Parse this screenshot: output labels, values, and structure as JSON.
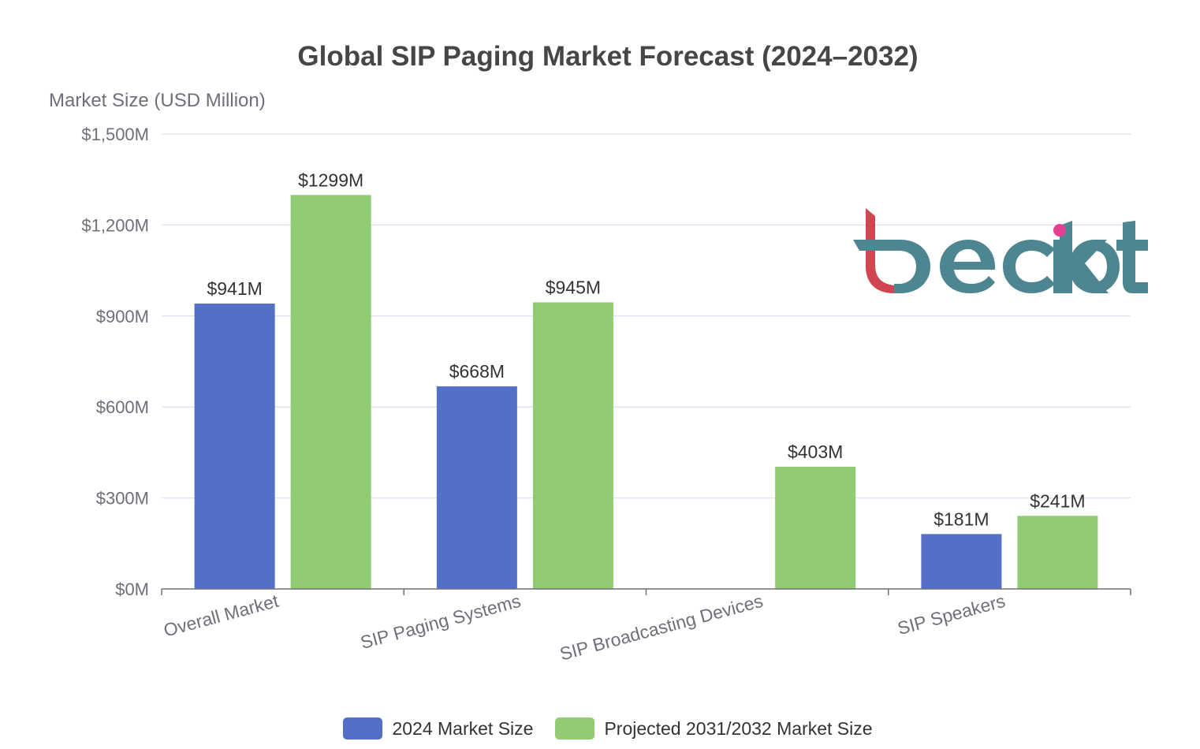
{
  "chart_data": {
    "type": "bar",
    "title": "Global SIP Paging Market Forecast (2024–2032)",
    "ylabel": "Market Size (USD Million)",
    "xlabel": "",
    "ylim": [
      0,
      1500
    ],
    "yticks": [
      0,
      300,
      600,
      900,
      1200,
      1500
    ],
    "ytick_labels": [
      "$0M",
      "$300M",
      "$600M",
      "$900M",
      "$1,200M",
      "$1,500M"
    ],
    "grid": true,
    "legend_position": "bottom-center",
    "categories": [
      "Overall Market",
      "SIP Paging Systems",
      "SIP Broadcasting Devices",
      "SIP Speakers"
    ],
    "series": [
      {
        "name": "2024 Market Size",
        "color": "#5470c6",
        "values": [
          941,
          668,
          null,
          181
        ],
        "labels": [
          "$941M",
          "$668M",
          "",
          "$181M"
        ]
      },
      {
        "name": "Projected 2031/2032 Market Size",
        "color": "#91cc75",
        "values": [
          1299,
          945,
          403,
          241
        ],
        "labels": [
          "$1299M",
          "$945M",
          "$403M",
          "$241M"
        ]
      }
    ]
  },
  "watermark": {
    "text": "beckiot",
    "primary_color": "#4d8590",
    "accent_color": "#d0454f",
    "dot_color": "#e3408f"
  }
}
